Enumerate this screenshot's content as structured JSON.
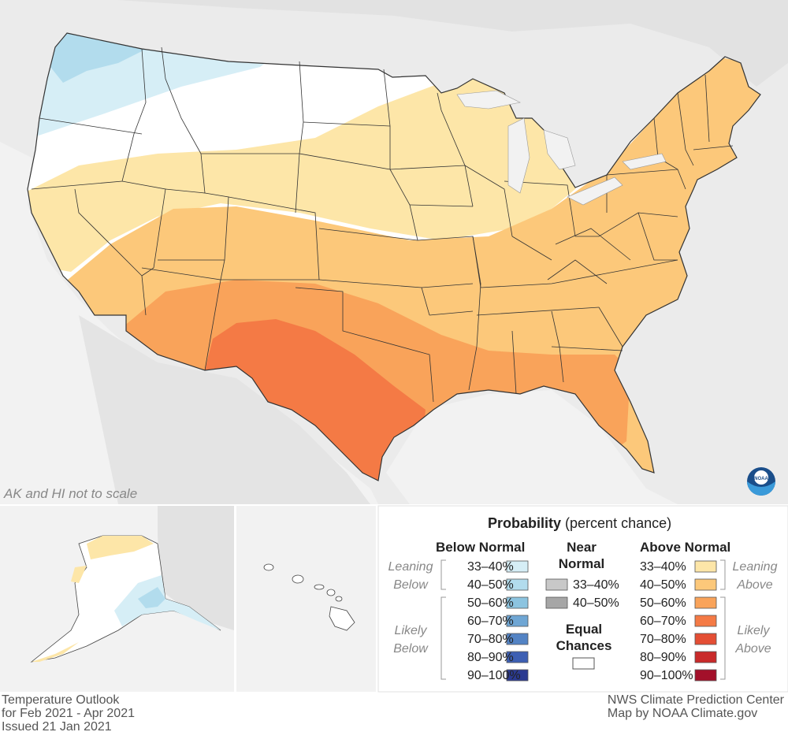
{
  "map": {
    "note": "AK and HI not to scale",
    "agency_logo_text": "NOAA"
  },
  "legend": {
    "title_bold": "Probability",
    "title_rest": "(percent chance)",
    "below": {
      "heading": "Below Normal",
      "leaning_label": [
        "Leaning",
        "Below"
      ],
      "likely_label": [
        "Likely",
        "Below"
      ],
      "bins": [
        {
          "label": "33–40%",
          "color": "#d6eef6"
        },
        {
          "label": "40–50%",
          "color": "#b2dced"
        },
        {
          "label": "50–60%",
          "color": "#8cc4e0"
        },
        {
          "label": "60–70%",
          "color": "#6fa6d4"
        },
        {
          "label": "70–80%",
          "color": "#5383c4"
        },
        {
          "label": "80–90%",
          "color": "#3d5fb3"
        },
        {
          "label": "90–100%",
          "color": "#2b3a91"
        }
      ]
    },
    "near": {
      "heading": [
        "Near",
        "Normal"
      ],
      "bins": [
        {
          "label": "33–40%",
          "color": "#c8c8c8"
        },
        {
          "label": "40–50%",
          "color": "#a6a6a6"
        }
      ],
      "equal_heading": [
        "Equal",
        "Chances"
      ],
      "equal_color": "#ffffff"
    },
    "above": {
      "heading": "Above Normal",
      "leaning_label": [
        "Leaning",
        "Above"
      ],
      "likely_label": [
        "Likely",
        "Above"
      ],
      "bins": [
        {
          "label": "33–40%",
          "color": "#fde6a8"
        },
        {
          "label": "40–50%",
          "color": "#fcc87a"
        },
        {
          "label": "50–60%",
          "color": "#f9a35a"
        },
        {
          "label": "60–70%",
          "color": "#f47a45"
        },
        {
          "label": "70–80%",
          "color": "#e44e34"
        },
        {
          "label": "80–90%",
          "color": "#c92a2a"
        },
        {
          "label": "90–100%",
          "color": "#a3102a"
        }
      ]
    }
  },
  "footer": {
    "left": [
      "Temperature Outlook",
      "for Feb 2021 - Apr 2021",
      "Issued 21 Jan 2021"
    ],
    "right": [
      "NWS Climate Prediction Center",
      "Map by NOAA Climate.gov"
    ]
  },
  "colors": {
    "background_land": "#e6e6e6",
    "ocean": "#f2f2f2",
    "state_border": "#333333"
  }
}
